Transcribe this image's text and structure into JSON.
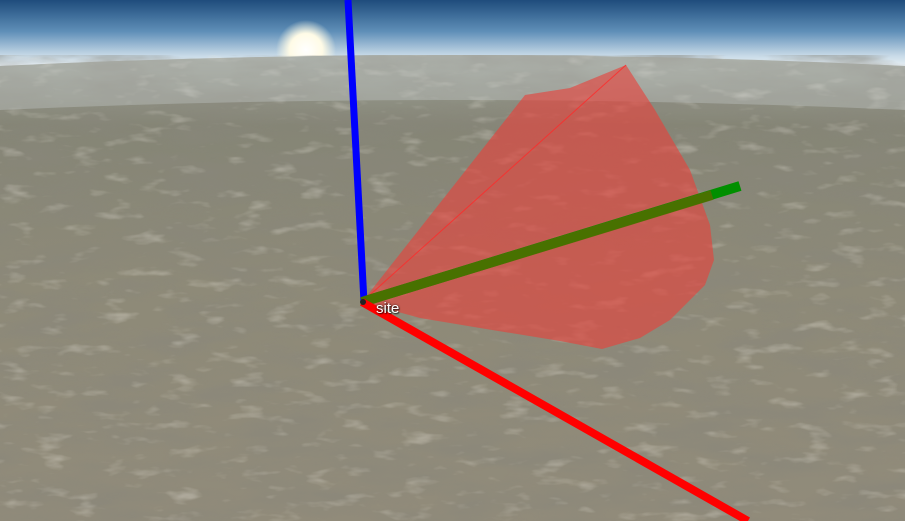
{
  "viewer": {
    "site_label": "site"
  },
  "colors": {
    "sky_top": "#2f5f8e",
    "sky_horizon": "#e6eef3",
    "terrain_base": "#8a8775",
    "terrain_dark": "#5f5e52",
    "terrain_light": "#b7b2a2",
    "sensor_cone_fill": "#e53935",
    "x_axis": "#ff0000",
    "y_axis": "#00a000",
    "z_axis": "#0000ff",
    "sun": "#fffbe8"
  },
  "entities": {
    "axes": [
      "x-axis",
      "y-axis",
      "z-axis"
    ],
    "sensor_volume": "sensor-cone"
  }
}
